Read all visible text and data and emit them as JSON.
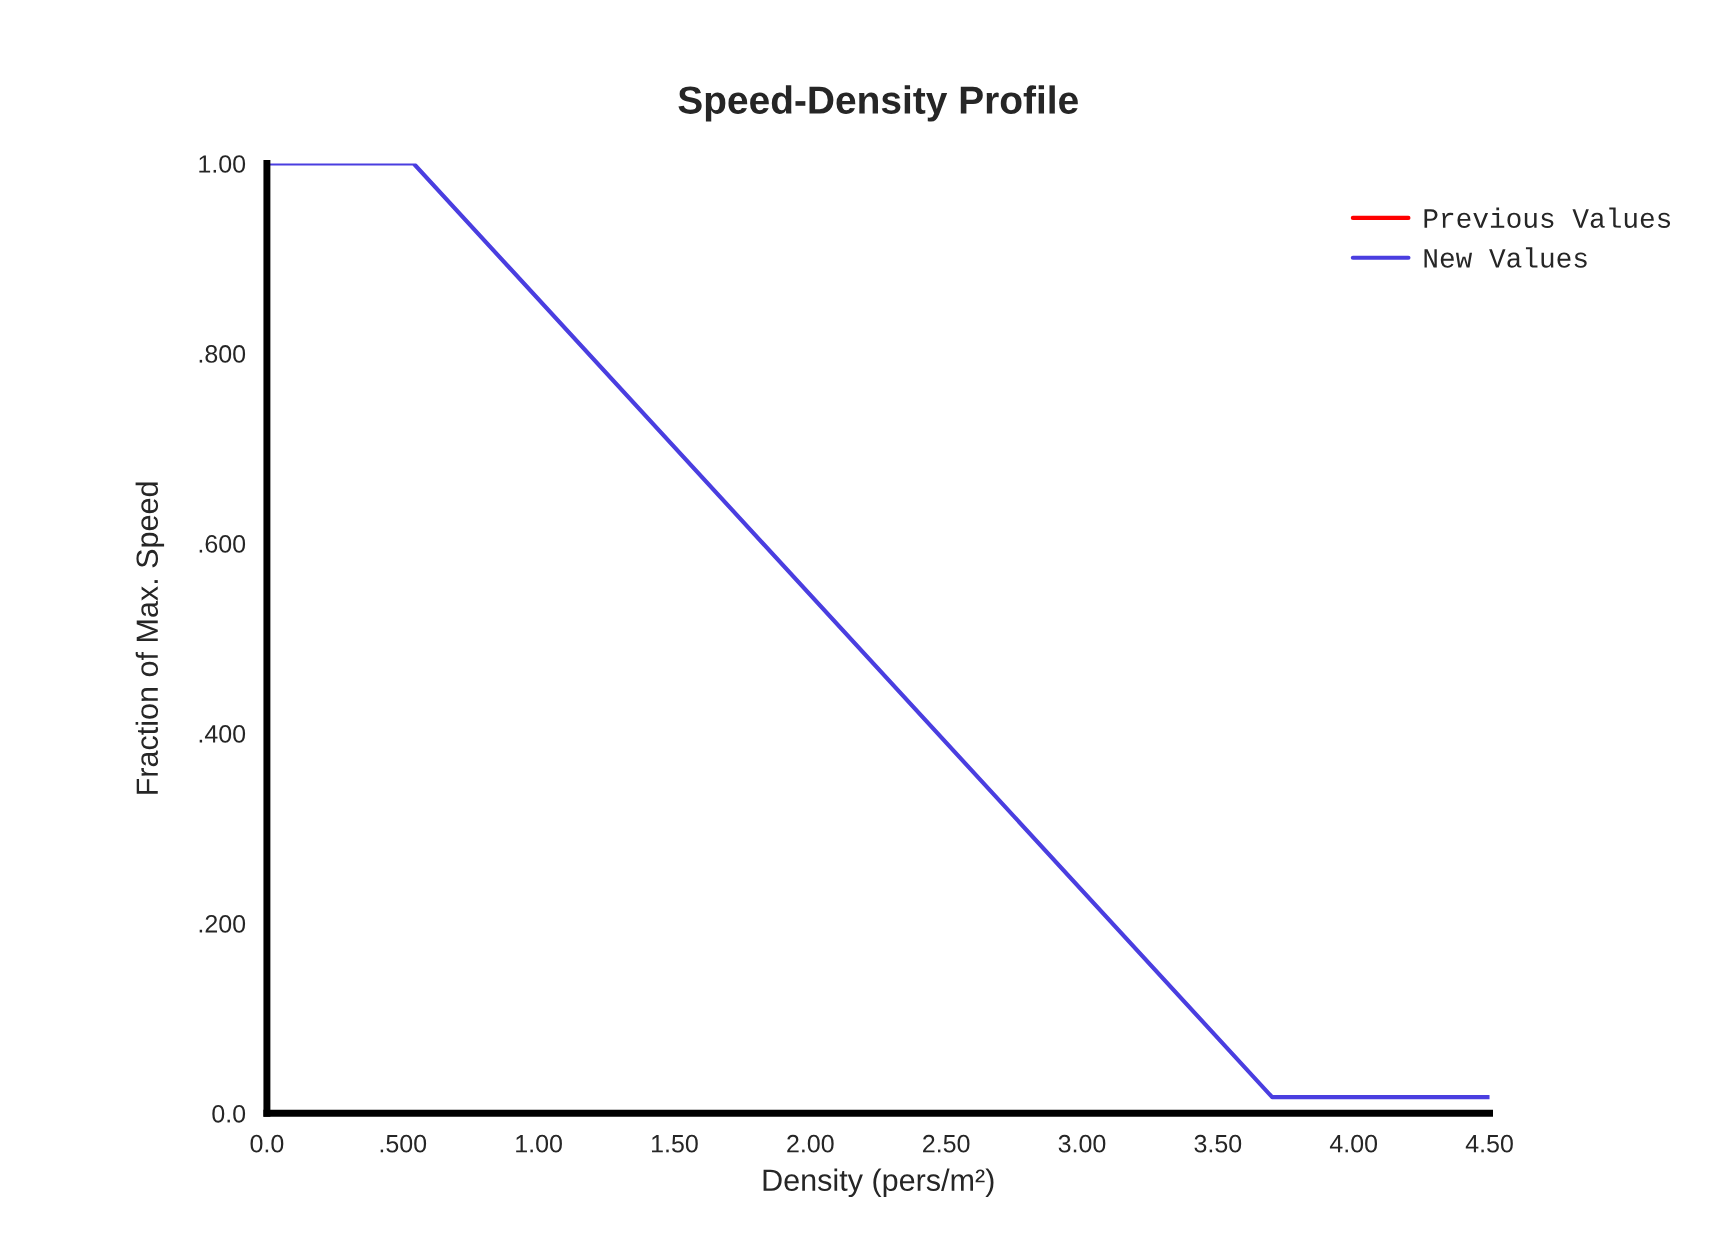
{
  "chart_data": {
    "type": "line",
    "title": "Speed-Density Profile",
    "xlabel": "Density (pers/m²)",
    "ylabel": "Fraction of Max. Speed",
    "x": [
      0.0,
      0.54,
      3.7,
      4.5
    ],
    "series": [
      {
        "name": "Previous Values",
        "color": "#ff0000",
        "values": [
          null,
          null,
          null,
          null
        ]
      },
      {
        "name": "New Values",
        "color": "#4a3ee0",
        "values": [
          1.0,
          1.0,
          0.017,
          0.017
        ]
      }
    ],
    "xlim": [
      0,
      4.5
    ],
    "ylim": [
      0,
      1.0
    ],
    "xticks": [
      {
        "value": 0,
        "label": "0.0"
      },
      {
        "value": 0.5,
        "label": ".500"
      },
      {
        "value": 1.0,
        "label": "1.00"
      },
      {
        "value": 1.5,
        "label": "1.50"
      },
      {
        "value": 2.0,
        "label": "2.00"
      },
      {
        "value": 2.5,
        "label": "2.50"
      },
      {
        "value": 3.0,
        "label": "3.00"
      },
      {
        "value": 3.5,
        "label": "3.50"
      },
      {
        "value": 4.0,
        "label": "4.00"
      },
      {
        "value": 4.5,
        "label": "4.50"
      }
    ],
    "yticks": [
      {
        "value": 0,
        "label": "0.0"
      },
      {
        "value": 0.2,
        "label": ".200"
      },
      {
        "value": 0.4,
        "label": ".400"
      },
      {
        "value": 0.6,
        "label": ".600"
      },
      {
        "value": 0.8,
        "label": ".800"
      },
      {
        "value": 1.0,
        "label": "1.00"
      }
    ],
    "grid": false,
    "legend": "top right",
    "marker": "none",
    "line_style": "solid"
  }
}
